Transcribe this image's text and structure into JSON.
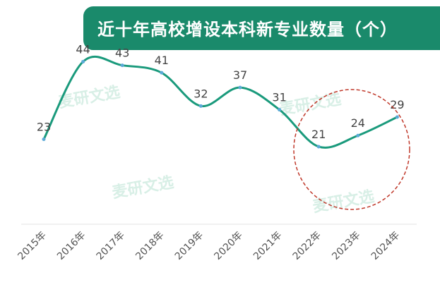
{
  "chart_data": {
    "type": "line",
    "title": "近十年高校增设本科新专业数量（个）",
    "categories": [
      "2015年",
      "2016年",
      "2017年",
      "2018年",
      "2019年",
      "2020年",
      "2021年",
      "2022年",
      "2023年",
      "2024年"
    ],
    "series": [
      {
        "values": [
          23,
          44,
          43,
          41,
          32,
          37,
          31,
          21,
          24,
          29
        ]
      }
    ],
    "line_color": "#1a9a7c",
    "annotation_circle_color": "#c0392b",
    "ylim": [
      0,
      50
    ],
    "grid": false
  },
  "watermark": "麦研文选"
}
